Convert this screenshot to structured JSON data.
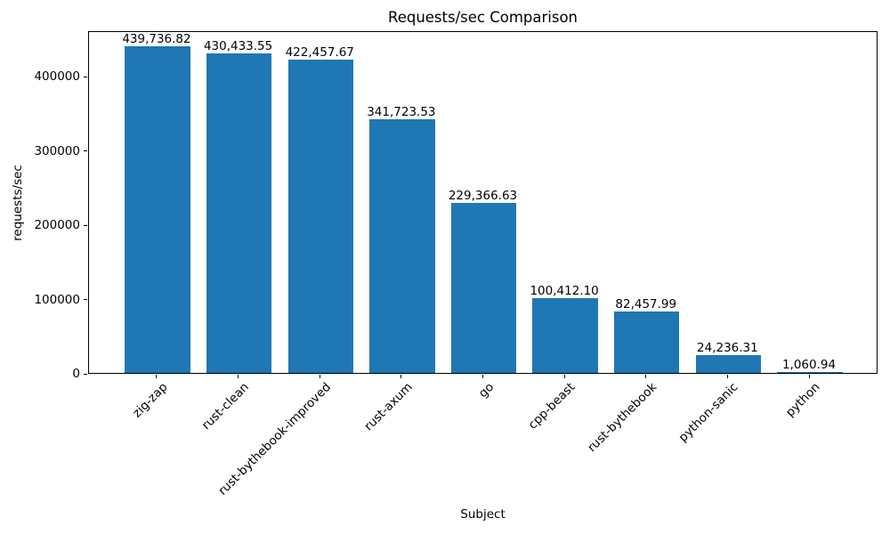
{
  "chart_data": {
    "type": "bar",
    "title": "Requests/sec Comparison",
    "xlabel": "Subject",
    "ylabel": "requests/sec",
    "categories": [
      "zig-zap",
      "rust-clean",
      "rust-bythebook-improved",
      "rust-axum",
      "go",
      "cpp-beast",
      "rust-bythebook",
      "python-sanic",
      "python"
    ],
    "values": [
      439736.82,
      430433.55,
      422457.67,
      341723.53,
      229366.63,
      100412.1,
      82457.99,
      24236.31,
      1060.94
    ],
    "value_labels": [
      "439,736.82",
      "430,433.55",
      "422,457.67",
      "341,723.53",
      "229,366.63",
      "100,412.10",
      "82,457.99",
      "24,236.31",
      "1,060.94"
    ],
    "yticks": [
      0,
      100000,
      200000,
      300000,
      400000
    ],
    "ytick_labels": [
      "0",
      "100000",
      "200000",
      "300000",
      "400000"
    ],
    "ylim": [
      0,
      461723.66
    ],
    "bar_color": "#1f77b4",
    "text_color": "#000000",
    "grid": false,
    "legend": null
  }
}
